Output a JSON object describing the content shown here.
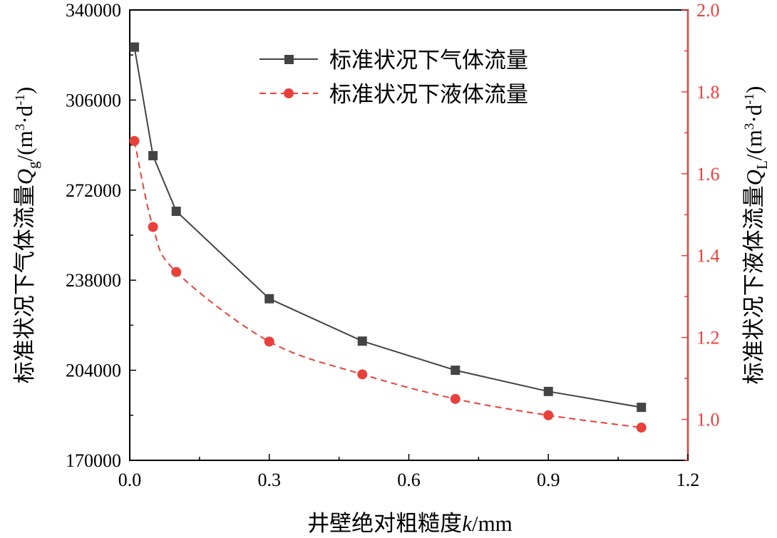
{
  "chart_data": {
    "type": "line",
    "x": [
      0.01,
      0.05,
      0.1,
      0.3,
      0.5,
      0.7,
      0.9,
      1.1
    ],
    "xlim": [
      0,
      1.2
    ],
    "xticks": [
      "0.0",
      "0.3",
      "0.6",
      "0.9",
      "1.2"
    ],
    "xlabel": {
      "prefix": "井壁绝对粗糙度",
      "var": "k",
      "unit": "/mm"
    },
    "left_axis": {
      "ylim": [
        170000,
        340000
      ],
      "ticks": [
        "170000",
        "204000",
        "238000",
        "272000",
        "306000",
        "340000"
      ],
      "label": {
        "prefix": "标准状况下气体流量",
        "var": "Q",
        "sub": "g",
        "unit": "/(m",
        "sup1": "3",
        "mid": "·d",
        "sup2": "-1",
        "end": ")"
      },
      "color": "#000000"
    },
    "right_axis": {
      "ylim": [
        0.9,
        2.0
      ],
      "ticks": [
        "1.0",
        "1.2",
        "1.4",
        "1.6",
        "1.8",
        "2.0"
      ],
      "label": {
        "prefix": "标准状况下液体流量",
        "var": "Q",
        "sub": "L",
        "unit": "/(m",
        "sup1": "3",
        "mid": "·d",
        "sup2": "-1",
        "end": ")"
      },
      "color": "#e8413c"
    },
    "series": [
      {
        "name": "标准状况下气体流量",
        "axis": "left",
        "style": "solid",
        "marker": "square",
        "color": "#444444",
        "values": [
          326000,
          285000,
          264000,
          231000,
          215000,
          204000,
          196000,
          190000
        ]
      },
      {
        "name": "标准状况下液体流量",
        "axis": "right",
        "style": "dashed",
        "marker": "circle",
        "color": "#e8413c",
        "values": [
          1.68,
          1.47,
          1.36,
          1.19,
          1.11,
          1.05,
          1.01,
          0.98
        ]
      }
    ],
    "legend": "top-right",
    "grid": false
  }
}
